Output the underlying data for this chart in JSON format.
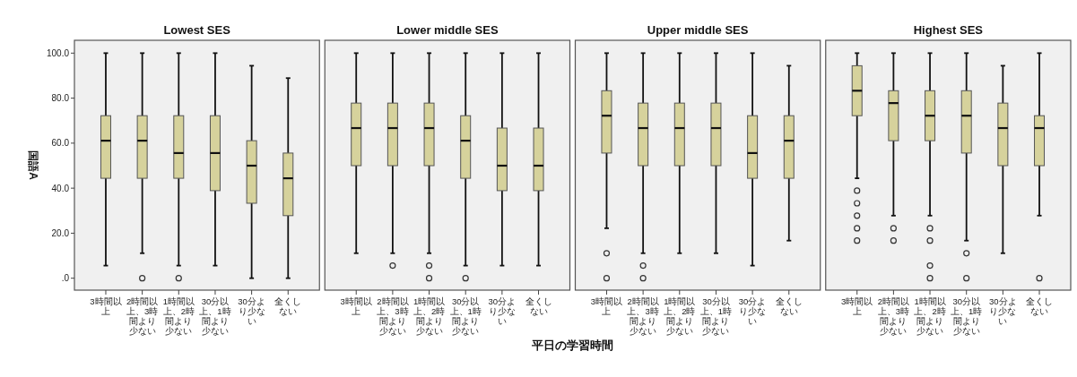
{
  "chart_data": [
    {
      "type": "box",
      "title": "Lowest SES",
      "ylabel": "国語A",
      "categories": [
        "3時間以上",
        "2時間以上、3時間より少ない",
        "1時間以上、2時間より少ない",
        "30分以上、1時間より少ない",
        "30分より少ない",
        "全くしない"
      ],
      "color": "#d6d29c",
      "ylim": [
        -5.3,
        105.7
      ],
      "yticks": [
        {
          "value": 0,
          "label": ".0"
        },
        {
          "value": 20,
          "label": "20.0"
        },
        {
          "value": 40,
          "label": "40.0"
        },
        {
          "value": 60,
          "label": "60.0"
        },
        {
          "value": 80,
          "label": "80.0"
        },
        {
          "value": 100,
          "label": "100.0"
        }
      ],
      "boxes": [
        {
          "low": 5.6,
          "q1": 44.4,
          "median": 61.1,
          "q3": 72.2,
          "high": 100
        },
        {
          "low": 11.1,
          "q1": 44.4,
          "median": 61.1,
          "q3": 72.2,
          "high": 100,
          "outliers": [
            0
          ]
        },
        {
          "low": 5.6,
          "q1": 44.4,
          "median": 55.6,
          "q3": 72.2,
          "high": 100,
          "outliers": [
            0
          ]
        },
        {
          "low": 5.6,
          "q1": 38.9,
          "median": 55.6,
          "q3": 72.2,
          "high": 100
        },
        {
          "low": 0,
          "q1": 33.3,
          "median": 50,
          "q3": 61.1,
          "high": 94.4
        },
        {
          "low": 0,
          "q1": 27.8,
          "median": 44.4,
          "q3": 55.6,
          "high": 88.9
        }
      ]
    },
    {
      "type": "box",
      "title": "Lower middle SES",
      "xlabel": "平日の学習時間",
      "categories": [
        "3時間以上",
        "2時間以上、3時間より少ない",
        "1時間以上、2時間より少ない",
        "30分以上、1時間より少ない",
        "30分より少ない",
        "全くしない"
      ],
      "color": "#d6d29c",
      "ylim": [
        -5.3,
        105.7
      ],
      "tick_labels": "x",
      "boxes": [
        {
          "low": 11.1,
          "q1": 50,
          "median": 66.7,
          "q3": 77.8,
          "high": 100
        },
        {
          "low": 11.1,
          "q1": 50,
          "median": 66.7,
          "q3": 77.8,
          "high": 100,
          "outliers": [
            5.6
          ]
        },
        {
          "low": 11.1,
          "q1": 50,
          "median": 66.7,
          "q3": 77.8,
          "high": 100,
          "outliers": [
            5.6,
            0
          ]
        },
        {
          "low": 5.6,
          "q1": 44.4,
          "median": 61.1,
          "q3": 72.2,
          "high": 100,
          "outliers": [
            0
          ]
        },
        {
          "low": 5.6,
          "q1": 38.9,
          "median": 50,
          "q3": 66.7,
          "high": 100
        },
        {
          "low": 5.6,
          "q1": 38.9,
          "median": 50,
          "q3": 66.7,
          "high": 100
        }
      ]
    },
    {
      "type": "box",
      "title": "Upper middle SES",
      "categories": [
        "3時間以上",
        "2時間以上、3時間より少ない",
        "1時間以上、2時間より少ない",
        "30分以上、1時間より少ない",
        "30分より少ない",
        "全くしない"
      ],
      "color": "#d6d29c",
      "ylim": [
        -5.3,
        105.7
      ],
      "tick_labels": "x",
      "boxes": [
        {
          "low": 22.2,
          "q1": 55.6,
          "median": 72.2,
          "q3": 83.3,
          "high": 100,
          "outliers": [
            11.1,
            0
          ]
        },
        {
          "low": 11.1,
          "q1": 50,
          "median": 66.7,
          "q3": 77.8,
          "high": 100,
          "outliers": [
            5.6,
            0
          ]
        },
        {
          "low": 11.1,
          "q1": 50,
          "median": 66.7,
          "q3": 77.8,
          "high": 100
        },
        {
          "low": 11.1,
          "q1": 50,
          "median": 66.7,
          "q3": 77.8,
          "high": 100
        },
        {
          "low": 5.6,
          "q1": 44.4,
          "median": 55.6,
          "q3": 72.2,
          "high": 100
        },
        {
          "low": 16.7,
          "q1": 44.4,
          "median": 61.1,
          "q3": 72.2,
          "high": 94.4
        }
      ]
    },
    {
      "type": "box",
      "title": "Highest SES",
      "categories": [
        "3時間以上",
        "2時間以上、3時間より少ない",
        "1時間以上、2時間より少ない",
        "30分以上、1時間より少ない",
        "30分より少ない",
        "全くしない"
      ],
      "color": "#d6d29c",
      "ylim": [
        -5.3,
        105.7
      ],
      "tick_labels": "x",
      "boxes": [
        {
          "low": 44.4,
          "q1": 72.2,
          "median": 83.3,
          "q3": 94.4,
          "high": 100,
          "outliers": [
            38.9,
            33.3,
            27.8,
            22.2,
            16.7
          ]
        },
        {
          "low": 27.8,
          "q1": 61.1,
          "median": 77.8,
          "q3": 83.3,
          "high": 100,
          "outliers": [
            22.2,
            16.7
          ]
        },
        {
          "low": 27.8,
          "q1": 61.1,
          "median": 72.2,
          "q3": 83.3,
          "high": 100,
          "outliers": [
            22.2,
            16.7,
            5.6,
            0
          ]
        },
        {
          "low": 16.7,
          "q1": 55.6,
          "median": 72.2,
          "q3": 83.3,
          "high": 100,
          "outliers": [
            11.1,
            0
          ]
        },
        {
          "low": 11.1,
          "q1": 50,
          "median": 66.7,
          "q3": 77.8,
          "high": 94.4
        },
        {
          "low": 27.8,
          "q1": 50,
          "median": 66.7,
          "q3": 72.2,
          "high": 100,
          "outliers": [
            0
          ]
        }
      ]
    }
  ]
}
